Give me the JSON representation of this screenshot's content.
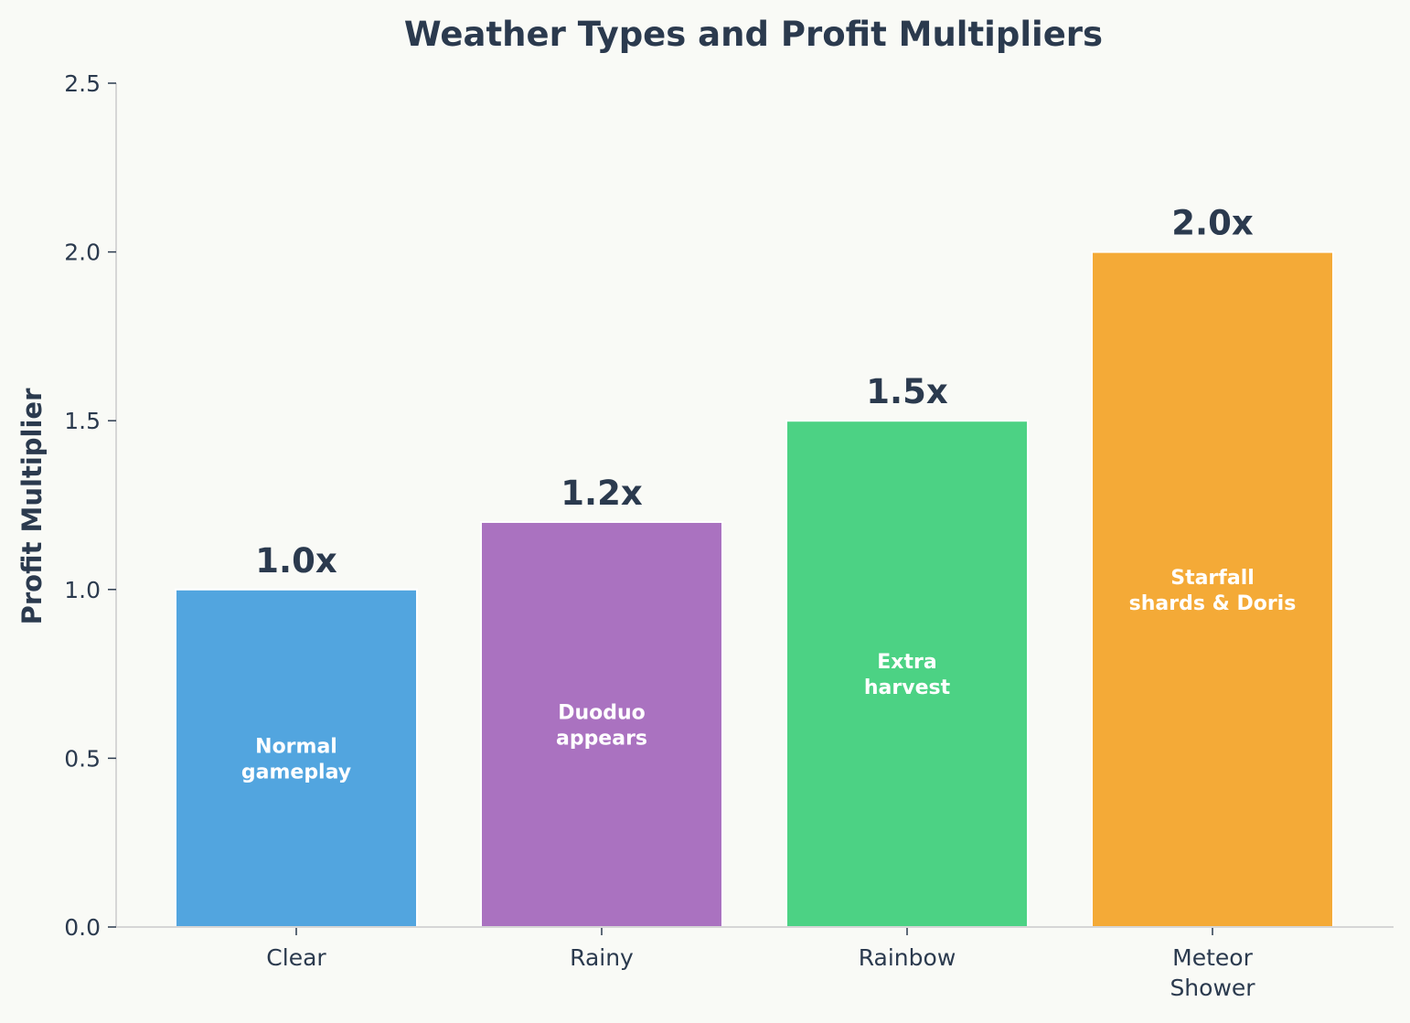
{
  "chart_data": {
    "type": "bar",
    "title": "Weather Types and Profit Multipliers",
    "xlabel": "",
    "ylabel": "Profit Multiplier",
    "ylim": [
      0,
      2.5
    ],
    "yticks": [
      "0.0",
      "0.5",
      "1.0",
      "1.5",
      "2.0",
      "2.5"
    ],
    "ytick_values": [
      0,
      0.5,
      1.0,
      1.5,
      2.0,
      2.5
    ],
    "grid": false,
    "legend": "none",
    "categories": [
      [
        "Clear"
      ],
      [
        "Rainy"
      ],
      [
        "Rainbow"
      ],
      [
        "Meteor",
        "Shower"
      ]
    ],
    "values": [
      1.0,
      1.2,
      1.5,
      2.0
    ],
    "value_labels": [
      "1.0x",
      "1.2x",
      "1.5x",
      "2.0x"
    ],
    "bar_annotations": [
      [
        "Normal",
        "gameplay"
      ],
      [
        "Duoduo",
        "appears"
      ],
      [
        "Extra",
        "harvest"
      ],
      [
        "Starfall",
        "shards & Doris"
      ]
    ],
    "colors": [
      "#52a5df",
      "#aa72c0",
      "#4cd284",
      "#f4aa37"
    ],
    "text_color": "#2b3a4e",
    "annotation_color": "#ffffff",
    "axis_color": "#d6d6d6",
    "background": "#f9faf6"
  }
}
